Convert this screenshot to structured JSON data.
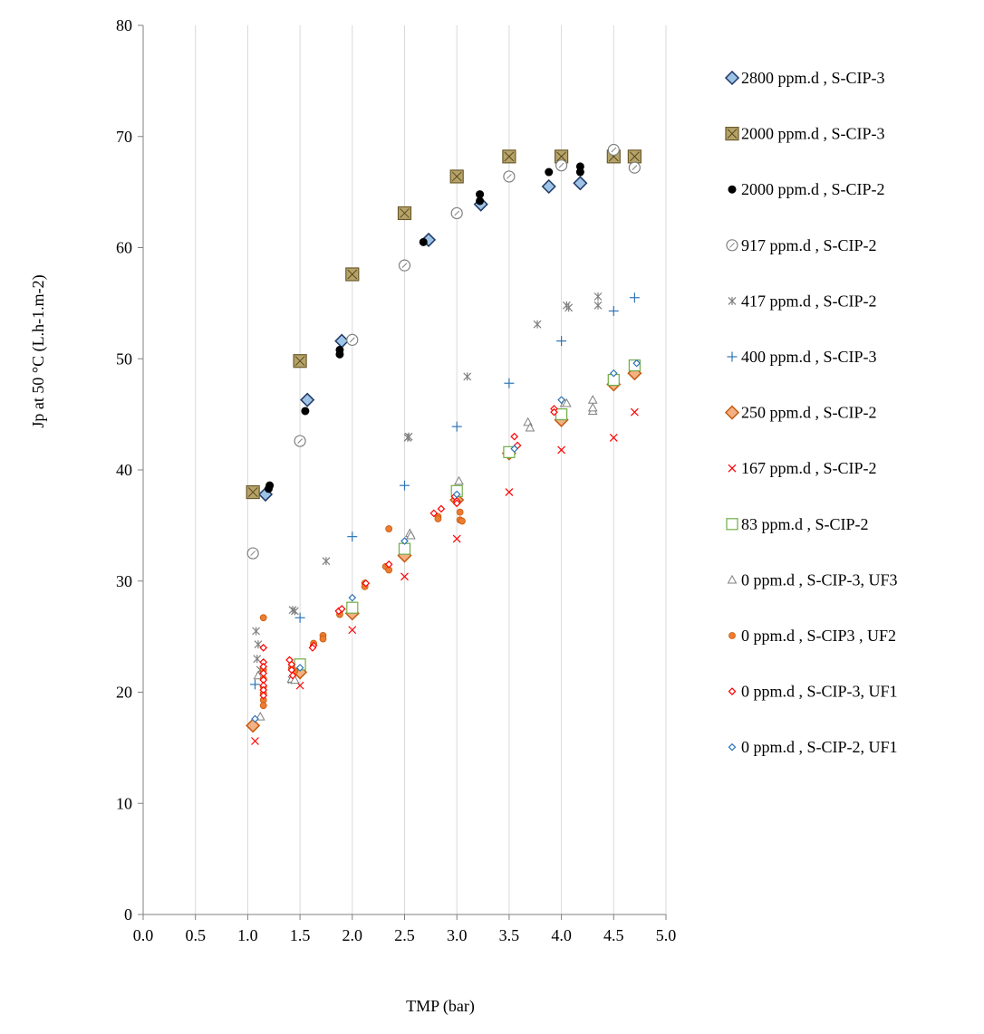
{
  "chart_data": {
    "type": "scatter",
    "title": "",
    "xlabel": "TMP (bar)",
    "ylabel": "Jp at 50 °C (L.h-1.m-2)",
    "xlim": [
      0,
      5
    ],
    "ylim": [
      0,
      80
    ],
    "xticks": [
      "0.0",
      "0.5",
      "1.0",
      "1.5",
      "2.0",
      "2.5",
      "3.0",
      "3.5",
      "4.0",
      "4.5",
      "5.0"
    ],
    "yticks": [
      "0",
      "10",
      "20",
      "30",
      "40",
      "50",
      "60",
      "70",
      "80"
    ],
    "grid": "vertical",
    "legend_position": "right",
    "series": [
      {
        "name": "2800 ppm.d , S-CIP-3",
        "marker": "diamond",
        "color": "#9dc3e6",
        "stroke": "#1f3864",
        "points": [
          [
            1.17,
            37.8
          ],
          [
            1.57,
            46.3
          ],
          [
            1.9,
            51.6
          ],
          [
            2.73,
            60.7
          ],
          [
            3.23,
            63.9
          ],
          [
            3.88,
            65.5
          ],
          [
            4.18,
            65.8
          ]
        ]
      },
      {
        "name": "2000 ppm.d , S-CIP-3",
        "marker": "square-x",
        "color": "#b5a36a",
        "stroke": "#6b5a2a",
        "points": [
          [
            1.05,
            38.0
          ],
          [
            1.5,
            49.8
          ],
          [
            2.0,
            57.6
          ],
          [
            2.5,
            63.1
          ],
          [
            3.0,
            66.4
          ],
          [
            3.5,
            68.2
          ],
          [
            4.0,
            68.2
          ],
          [
            4.5,
            68.2
          ],
          [
            4.7,
            68.2
          ]
        ]
      },
      {
        "name": "2000 ppm.d , S-CIP-2",
        "marker": "dot",
        "color": "#000000",
        "stroke": "#000000",
        "points": [
          [
            1.2,
            38.3
          ],
          [
            1.21,
            38.6
          ],
          [
            1.55,
            45.3
          ],
          [
            1.88,
            50.4
          ],
          [
            1.88,
            50.8
          ],
          [
            2.68,
            60.5
          ],
          [
            3.22,
            64.2
          ],
          [
            3.22,
            64.8
          ],
          [
            3.88,
            66.8
          ],
          [
            4.18,
            66.8
          ],
          [
            4.18,
            67.3
          ]
        ]
      },
      {
        "name": "917 ppm.d , S-CIP-2",
        "marker": "circle-dot",
        "color": "#ffffff",
        "stroke": "#808080",
        "points": [
          [
            1.05,
            32.5
          ],
          [
            1.5,
            42.6
          ],
          [
            2.0,
            51.7
          ],
          [
            2.5,
            58.4
          ],
          [
            3.0,
            63.1
          ],
          [
            3.5,
            66.4
          ],
          [
            4.0,
            67.4
          ],
          [
            4.5,
            68.8
          ],
          [
            4.7,
            67.2
          ]
        ]
      },
      {
        "name": "417 ppm.d , S-CIP-2",
        "marker": "star",
        "color": "#808080",
        "stroke": "#808080",
        "points": [
          [
            1.08,
            25.5
          ],
          [
            1.1,
            24.3
          ],
          [
            1.09,
            23.0
          ],
          [
            1.12,
            22.0
          ],
          [
            1.42,
            21.1
          ],
          [
            1.43,
            27.4
          ],
          [
            1.45,
            27.3
          ],
          [
            1.75,
            31.8
          ],
          [
            2.53,
            42.9
          ],
          [
            2.54,
            43.0
          ],
          [
            3.1,
            48.4
          ],
          [
            3.77,
            53.1
          ],
          [
            4.05,
            54.8
          ],
          [
            4.07,
            54.6
          ],
          [
            4.35,
            55.6
          ],
          [
            4.35,
            54.8
          ]
        ]
      },
      {
        "name": "400 ppm.d , S-CIP-3",
        "marker": "plus",
        "color": "#2e75b6",
        "stroke": "#2e75b6",
        "points": [
          [
            1.07,
            20.7
          ],
          [
            1.5,
            26.7
          ],
          [
            2.0,
            34.0
          ],
          [
            2.5,
            38.6
          ],
          [
            3.0,
            43.9
          ],
          [
            3.5,
            47.8
          ],
          [
            4.0,
            51.6
          ],
          [
            4.5,
            54.3
          ],
          [
            4.7,
            55.5
          ]
        ]
      },
      {
        "name": "250 ppm.d , S-CIP-2",
        "marker": "diamond",
        "color": "#f4b183",
        "stroke": "#c55a11",
        "points": [
          [
            1.05,
            17.0
          ],
          [
            1.5,
            21.8
          ],
          [
            2.0,
            27.1
          ],
          [
            2.5,
            32.3
          ],
          [
            3.0,
            37.3
          ],
          [
            3.5,
            41.5
          ],
          [
            4.0,
            44.5
          ],
          [
            4.5,
            47.7
          ],
          [
            4.7,
            48.7
          ]
        ]
      },
      {
        "name": "167 ppm.d , S-CIP-2",
        "marker": "x",
        "color": "#ff0000",
        "stroke": "#ff0000",
        "points": [
          [
            1.07,
            15.6
          ],
          [
            1.5,
            20.6
          ],
          [
            2.0,
            25.6
          ],
          [
            2.5,
            30.4
          ],
          [
            3.0,
            33.8
          ],
          [
            3.5,
            38.0
          ],
          [
            4.0,
            41.8
          ],
          [
            4.5,
            42.9
          ],
          [
            4.7,
            45.2
          ]
        ]
      },
      {
        "name": "83 ppm.d , S-CIP-2",
        "marker": "square",
        "color": "#ffffff",
        "stroke": "#70ad47",
        "points": [
          [
            1.5,
            22.5
          ],
          [
            2.0,
            27.6
          ],
          [
            2.5,
            32.9
          ],
          [
            3.0,
            38.1
          ],
          [
            3.5,
            41.6
          ],
          [
            4.0,
            45.0
          ],
          [
            4.5,
            48.1
          ],
          [
            4.7,
            49.4
          ]
        ]
      },
      {
        "name": "0 ppm.d , S-CIP-3, UF3",
        "marker": "triangle",
        "color": "#ffffff",
        "stroke": "#808080",
        "points": [
          [
            1.12,
            17.8
          ],
          [
            1.1,
            21.5
          ],
          [
            1.42,
            21.2
          ],
          [
            1.45,
            21.1
          ],
          [
            2.55,
            34.3
          ],
          [
            2.56,
            34.1
          ],
          [
            3.02,
            39.0
          ],
          [
            3.68,
            44.3
          ],
          [
            3.7,
            43.8
          ],
          [
            4.03,
            46.0
          ],
          [
            4.05,
            46.0
          ],
          [
            4.3,
            46.3
          ],
          [
            4.3,
            45.3
          ],
          [
            4.3,
            45.6
          ]
        ]
      },
      {
        "name": "0 ppm.d , S-CIP3 , UF2",
        "marker": "dot-ring",
        "color": "#ed7d31",
        "stroke": "#c55a11",
        "points": [
          [
            1.15,
            26.7
          ],
          [
            1.15,
            22.0
          ],
          [
            1.15,
            21.2
          ],
          [
            1.15,
            20.5
          ],
          [
            1.15,
            19.9
          ],
          [
            1.15,
            19.3
          ],
          [
            1.15,
            18.8
          ],
          [
            1.42,
            22.2
          ],
          [
            1.45,
            21.9
          ],
          [
            1.63,
            24.4
          ],
          [
            1.72,
            25.1
          ],
          [
            1.72,
            24.8
          ],
          [
            1.88,
            27.3
          ],
          [
            1.88,
            27.0
          ],
          [
            2.12,
            29.8
          ],
          [
            2.12,
            29.5
          ],
          [
            2.32,
            31.3
          ],
          [
            2.35,
            31.0
          ],
          [
            2.35,
            34.7
          ],
          [
            2.82,
            35.8
          ],
          [
            2.82,
            35.6
          ],
          [
            3.03,
            36.2
          ],
          [
            3.03,
            35.5
          ],
          [
            3.05,
            35.4
          ]
        ]
      },
      {
        "name": "0 ppm.d , S-CIP-3, UF1",
        "marker": "diamond-open",
        "color": "#ffffff",
        "stroke": "#ff0000",
        "points": [
          [
            1.15,
            24.0
          ],
          [
            1.15,
            22.7
          ],
          [
            1.15,
            22.3
          ],
          [
            1.15,
            21.7
          ],
          [
            1.15,
            21.1
          ],
          [
            1.15,
            20.6
          ],
          [
            1.15,
            20.2
          ],
          [
            1.15,
            19.7
          ],
          [
            1.4,
            22.9
          ],
          [
            1.42,
            22.5
          ],
          [
            1.42,
            22.0
          ],
          [
            1.43,
            21.5
          ],
          [
            1.63,
            24.2
          ],
          [
            1.62,
            24.0
          ],
          [
            1.87,
            27.3
          ],
          [
            1.9,
            27.5
          ],
          [
            2.13,
            29.8
          ],
          [
            2.35,
            31.5
          ],
          [
            2.78,
            36.1
          ],
          [
            2.85,
            36.5
          ],
          [
            2.98,
            37.6
          ],
          [
            3.0,
            37.2
          ],
          [
            3.0,
            37.0
          ],
          [
            3.55,
            43.0
          ],
          [
            3.58,
            42.2
          ],
          [
            3.93,
            45.5
          ],
          [
            3.93,
            45.2
          ]
        ]
      },
      {
        "name": "0 ppm.d ,  S-CIP-2, UF1",
        "marker": "diamond-open",
        "color": "#ffffff",
        "stroke": "#2e75b6",
        "points": [
          [
            1.07,
            17.6
          ],
          [
            1.5,
            22.2
          ],
          [
            2.0,
            28.5
          ],
          [
            2.5,
            33.6
          ],
          [
            3.0,
            37.8
          ],
          [
            3.55,
            41.9
          ],
          [
            4.0,
            46.3
          ],
          [
            4.5,
            48.7
          ],
          [
            4.72,
            49.6
          ]
        ]
      }
    ]
  }
}
